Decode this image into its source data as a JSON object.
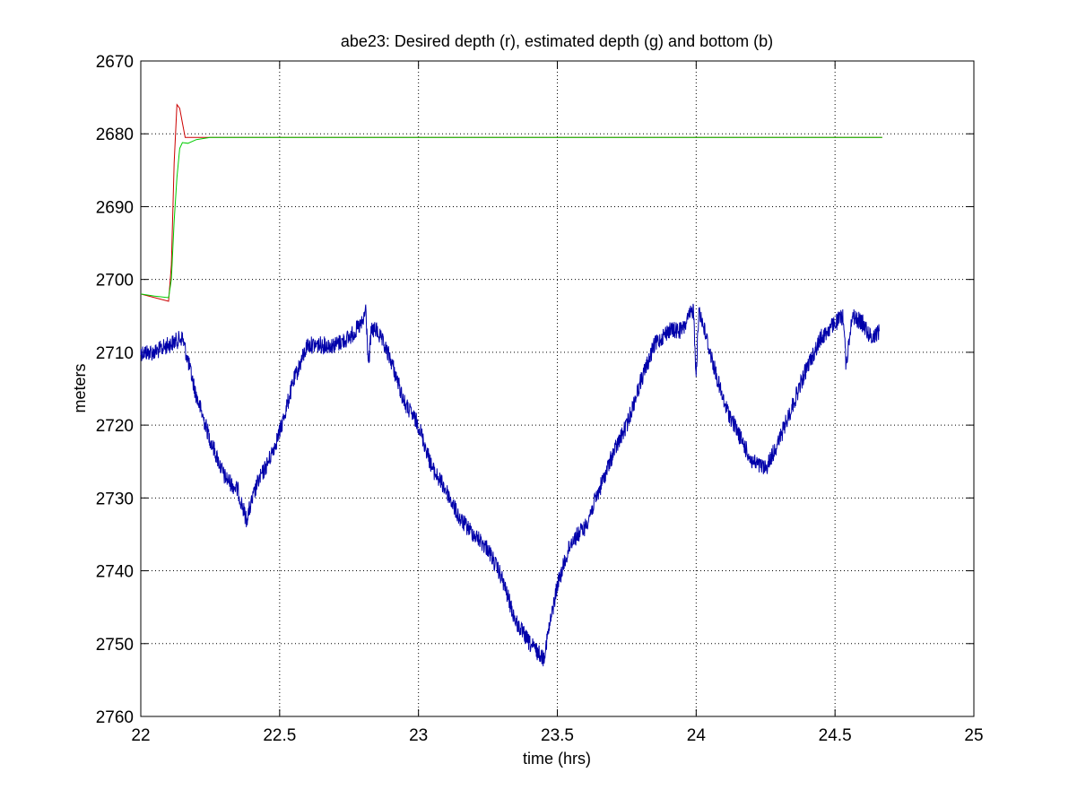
{
  "chart_data": {
    "type": "line",
    "title": "abe23: Desired depth (r), estimated depth (g) and bottom (b)",
    "xlabel": "time (hrs)",
    "ylabel": "meters",
    "xlim": [
      22,
      25
    ],
    "ylim": [
      2670,
      2760
    ],
    "y_reversed": true,
    "grid": true,
    "x_ticks": [
      22,
      22.5,
      23,
      23.5,
      24,
      24.5,
      25
    ],
    "x_tick_labels": [
      "22",
      "22.5",
      "23",
      "23.5",
      "24",
      "24.5",
      "25"
    ],
    "y_ticks": [
      2670,
      2680,
      2690,
      2700,
      2710,
      2720,
      2730,
      2740,
      2750,
      2760
    ],
    "y_tick_labels": [
      "2670",
      "2680",
      "2690",
      "2700",
      "2710",
      "2720",
      "2730",
      "2740",
      "2750",
      "2760"
    ],
    "series": [
      {
        "color": "#0000aa",
        "noise": 1.2,
        "x": [
          22.0,
          22.05,
          22.1,
          22.15,
          22.2,
          22.25,
          22.3,
          22.35,
          22.38,
          22.42,
          22.46,
          22.5,
          22.55,
          22.6,
          22.65,
          22.7,
          22.75,
          22.8,
          22.81,
          22.82,
          22.83,
          22.85,
          22.9,
          22.95,
          23.0,
          23.05,
          23.1,
          23.15,
          23.2,
          23.25,
          23.3,
          23.35,
          23.4,
          23.45,
          23.5,
          23.55,
          23.6,
          23.65,
          23.7,
          23.75,
          23.8,
          23.85,
          23.9,
          23.95,
          23.99,
          24.0,
          24.01,
          24.03,
          24.05,
          24.1,
          24.15,
          24.2,
          24.25,
          24.3,
          24.35,
          24.4,
          24.45,
          24.5,
          24.53,
          24.54,
          24.56,
          24.6,
          24.63,
          24.66
        ],
        "y": [
          2710,
          2710,
          2709,
          2708,
          2716,
          2722,
          2727,
          2729,
          2733,
          2728,
          2725,
          2721,
          2714,
          2709,
          2709,
          2709,
          2708,
          2706,
          2704,
          2712,
          2707,
          2707,
          2711,
          2717,
          2720,
          2726,
          2729,
          2733,
          2735,
          2737,
          2741,
          2747,
          2750,
          2752,
          2742,
          2736,
          2734,
          2729,
          2724,
          2720,
          2714,
          2709,
          2707,
          2707,
          2704,
          2713,
          2704,
          2707,
          2710,
          2717,
          2721,
          2725,
          2726,
          2722,
          2717,
          2712,
          2708,
          2706,
          2705,
          2712,
          2705,
          2706,
          2708,
          2707
        ]
      },
      {
        "color": "#cc0000",
        "noise": 0,
        "x": [
          22.0,
          22.1,
          22.11,
          22.12,
          22.13,
          22.14,
          22.15,
          22.16,
          22.2,
          22.3,
          22.5,
          23.0,
          23.5,
          24.0,
          24.5,
          24.67
        ],
        "y": [
          2702,
          2703,
          2698,
          2684,
          2676,
          2676.5,
          2678.5,
          2680.5,
          2680.5,
          2680.5,
          2680.5,
          2680.5,
          2680.5,
          2680.5,
          2680.5,
          2680.5
        ]
      },
      {
        "color": "#00cc00",
        "noise": 0,
        "x": [
          22.0,
          22.05,
          22.1,
          22.11,
          22.12,
          22.13,
          22.14,
          22.15,
          22.17,
          22.2,
          22.25,
          22.3,
          22.5,
          23.0,
          23.5,
          24.0,
          24.5,
          24.67
        ],
        "y": [
          2702,
          2702.3,
          2702.5,
          2700,
          2692,
          2686,
          2682,
          2681.2,
          2681.3,
          2680.8,
          2680.5,
          2680.5,
          2680.5,
          2680.5,
          2680.5,
          2680.5,
          2680.5,
          2680.5
        ]
      }
    ]
  }
}
